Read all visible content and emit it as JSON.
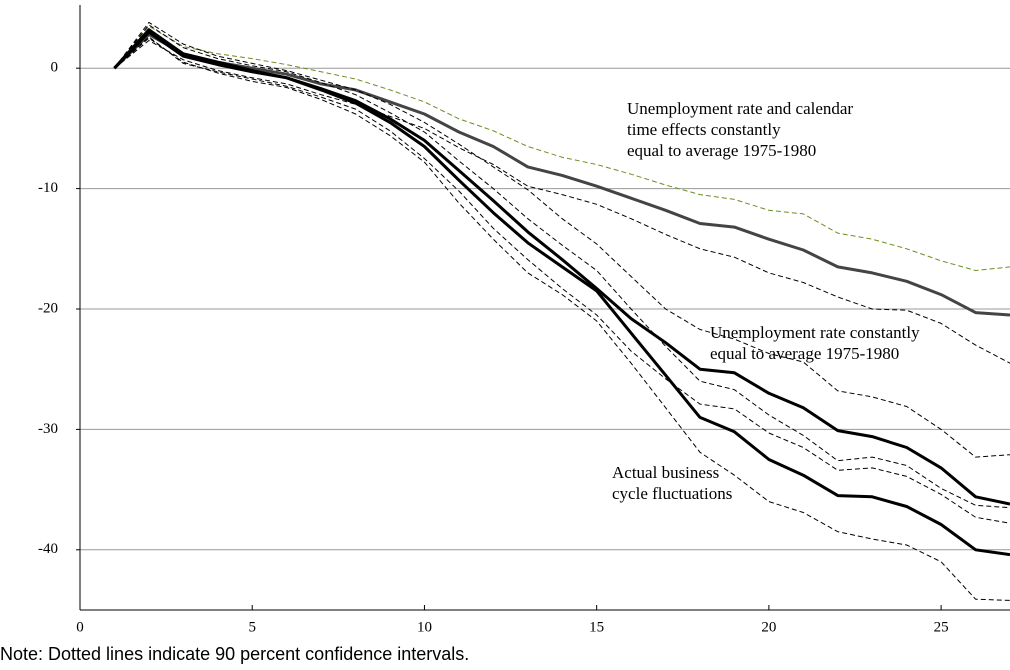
{
  "chart_data": {
    "type": "line",
    "x": [
      1,
      2,
      3,
      4,
      5,
      6,
      7,
      8,
      9,
      10,
      11,
      12,
      13,
      14,
      15,
      16,
      17,
      18,
      19,
      20,
      21,
      22,
      23,
      24,
      25,
      26,
      27
    ],
    "xlim": [
      0,
      27
    ],
    "xticks": [
      0,
      5,
      10,
      15,
      20,
      25
    ],
    "ylim": [
      -45,
      5
    ],
    "yticks": [
      0,
      -10,
      -20,
      -30,
      -40
    ],
    "grid": true,
    "series": [
      {
        "color": "#444444",
        "width": 3,
        "dashed": false,
        "values": [
          0,
          2.8,
          1.2,
          0.5,
          0,
          -0.5,
          -1.3,
          -1.8,
          -2.8,
          -3.8,
          -5.3,
          -6.5,
          -8.2,
          -8.9,
          -9.8,
          -10.8,
          -11.8,
          -12.9,
          -13.2,
          -14.2,
          -15.1,
          -16.5,
          -17,
          -17.7,
          -18.8,
          -20.3,
          -20.5
        ]
      },
      {
        "color": "#6b8e23",
        "width": 1,
        "dashed": true,
        "values": [
          0,
          3.5,
          1.8,
          1.2,
          0.8,
          0.3,
          -0.3,
          -0.9,
          -1.8,
          -2.8,
          -4.2,
          -5.2,
          -6.5,
          -7.4,
          -8.0,
          -8.8,
          -9.7,
          -10.5,
          -10.9,
          -11.8,
          -12.1,
          -13.7,
          -14.2,
          -15.0,
          -16.0,
          -16.8,
          -16.5
        ]
      },
      {
        "color": "#000000",
        "width": 1,
        "dashed": true,
        "values": [
          0,
          2.3,
          0.7,
          -0.2,
          -0.8,
          -1.3,
          -2.2,
          -3.0,
          -4.0,
          -5.0,
          -6.6,
          -8.0,
          -9.8,
          -10.5,
          -11.3,
          -12.5,
          -13.8,
          -15.0,
          -15.7,
          -17.0,
          -17.8,
          -19.0,
          -20.0,
          -20.1,
          -21.2,
          -23.0,
          -24.5
        ]
      },
      {
        "color": "#000000",
        "width": 3,
        "dashed": false,
        "values": [
          0,
          3.2,
          1.2,
          0.5,
          -0.2,
          -0.8,
          -1.7,
          -2.7,
          -4.2,
          -6.0,
          -8.5,
          -11.0,
          -13.6,
          -15.9,
          -18.3,
          -20.8,
          -22.8,
          -25.0,
          -25.3,
          -27.0,
          -28.2,
          -30.1,
          -30.6,
          -31.5,
          -33.2,
          -35.6,
          -36.2
        ]
      },
      {
        "color": "#000000",
        "width": 1,
        "dashed": true,
        "values": [
          0,
          3.8,
          2,
          1,
          0.4,
          -0.2,
          -1,
          -1.8,
          -3,
          -4.5,
          -6.3,
          -8.2,
          -10.1,
          -12.5,
          -14.6,
          -17.3,
          -20.0,
          -21.7,
          -22.5,
          -23.7,
          -24.4,
          -26.8,
          -27.3,
          -28.1,
          -30.0,
          -32.3,
          -32.1
        ]
      },
      {
        "color": "#000000",
        "width": 1,
        "dashed": true,
        "values": [
          0,
          2.6,
          0.4,
          -0.3,
          -0.9,
          -1.5,
          -2.4,
          -3.4,
          -5.2,
          -7.5,
          -10.2,
          -13.3,
          -15.9,
          -18.3,
          -20.5,
          -23.5,
          -25.8,
          -27.9,
          -28.3,
          -30.3,
          -31.5,
          -33.4,
          -33.2,
          -33.9,
          -35.4,
          -37.3,
          -37.8
        ]
      },
      {
        "color": "#000000",
        "width": 3,
        "dashed": false,
        "values": [
          0,
          3.0,
          1.0,
          0.3,
          -0.3,
          -0.8,
          -1.8,
          -2.9,
          -4.5,
          -6.5,
          -9.3,
          -12.0,
          -14.5,
          -16.5,
          -18.5,
          -22.0,
          -25.5,
          -29.0,
          -30.2,
          -32.5,
          -33.8,
          -35.5,
          -35.6,
          -36.4,
          -37.9,
          -40.0,
          -40.4
        ]
      },
      {
        "color": "#000000",
        "width": 1,
        "dashed": true,
        "values": [
          0,
          3.6,
          1.7,
          0.8,
          0.2,
          -0.3,
          -1.2,
          -2.2,
          -3.7,
          -5.3,
          -7.7,
          -10.0,
          -12.5,
          -14.7,
          -16.8,
          -20.0,
          -23.1,
          -26.0,
          -26.7,
          -28.8,
          -30.5,
          -32.6,
          -32.3,
          -33.0,
          -34.9,
          -36.3,
          -36.5
        ]
      },
      {
        "color": "#000000",
        "width": 1,
        "dashed": true,
        "values": [
          0,
          2.5,
          0.5,
          -0.4,
          -1.1,
          -1.6,
          -2.6,
          -3.8,
          -5.6,
          -7.8,
          -11.2,
          -14.2,
          -17,
          -18.8,
          -21.0,
          -24.5,
          -28.2,
          -31.9,
          -33.8,
          -36.0,
          -36.9,
          -38.5,
          -39.1,
          -39.6,
          -41.0,
          -44.1,
          -44.2
        ]
      }
    ],
    "annotations": [
      [
        "Unemployment rate and calendar",
        "time effects constantly",
        "equal to average 1975-1980"
      ],
      [
        "Unemployment rate constantly",
        "equal to average 1975-1980"
      ],
      [
        "Actual business",
        "cycle fluctuations"
      ]
    ],
    "note": "Note: Dotted lines indicate 90 percent confidence intervals."
  }
}
